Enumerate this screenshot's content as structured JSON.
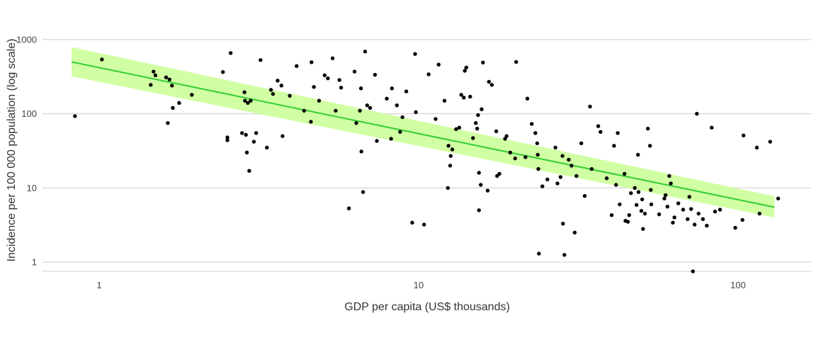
{
  "chart_data": {
    "type": "scatter",
    "xlabel": "GDP per capita (US$ thousands)",
    "ylabel": "Incidence per 100 000 population (log scale)",
    "x_scale": "log",
    "y_scale": "log",
    "xlim": [
      0.75,
      160
    ],
    "ylim": [
      0.7,
      1200
    ],
    "x_ticks": [
      {
        "value": 1,
        "label": "1"
      },
      {
        "value": 10,
        "label": "10"
      },
      {
        "value": 100,
        "label": "100"
      }
    ],
    "y_ticks": [
      {
        "value": 1,
        "label": "1"
      },
      {
        "value": 10,
        "label": "10"
      },
      {
        "value": 100,
        "label": "100"
      },
      {
        "value": 1000,
        "label": "1000"
      }
    ],
    "grid": "horizontal",
    "legend": "none",
    "colors": {
      "points": "#000000",
      "fit_line": "#33cc33",
      "confidence_band": "#ccff99"
    },
    "points": [
      [
        0.84,
        93
      ],
      [
        1.02,
        540
      ],
      [
        1.45,
        245
      ],
      [
        1.48,
        370
      ],
      [
        1.5,
        330
      ],
      [
        1.62,
        310
      ],
      [
        1.64,
        75
      ],
      [
        1.66,
        290
      ],
      [
        1.69,
        240
      ],
      [
        1.7,
        120
      ],
      [
        1.78,
        140
      ],
      [
        1.95,
        180
      ],
      [
        2.44,
        365
      ],
      [
        2.52,
        48
      ],
      [
        2.52,
        44
      ],
      [
        2.58,
        660
      ],
      [
        2.8,
        55
      ],
      [
        2.85,
        195
      ],
      [
        2.86,
        150
      ],
      [
        2.88,
        52
      ],
      [
        2.9,
        30
      ],
      [
        2.92,
        140
      ],
      [
        2.95,
        17
      ],
      [
        2.98,
        150
      ],
      [
        3.05,
        42
      ],
      [
        3.1,
        55
      ],
      [
        3.2,
        530
      ],
      [
        3.35,
        35
      ],
      [
        3.45,
        210
      ],
      [
        3.5,
        185
      ],
      [
        3.62,
        280
      ],
      [
        3.72,
        240
      ],
      [
        3.75,
        50
      ],
      [
        3.95,
        175
      ],
      [
        4.15,
        440
      ],
      [
        4.38,
        110
      ],
      [
        4.6,
        78
      ],
      [
        4.62,
        495
      ],
      [
        4.7,
        230
      ],
      [
        4.88,
        150
      ],
      [
        5.08,
        330
      ],
      [
        5.2,
        300
      ],
      [
        5.38,
        560
      ],
      [
        5.5,
        110
      ],
      [
        5.65,
        285
      ],
      [
        5.72,
        225
      ],
      [
        6.05,
        5.3
      ],
      [
        6.3,
        370
      ],
      [
        6.38,
        75
      ],
      [
        6.55,
        110
      ],
      [
        6.6,
        220
      ],
      [
        6.62,
        31
      ],
      [
        6.7,
        8.8
      ],
      [
        6.8,
        690
      ],
      [
        6.9,
        130
      ],
      [
        7.05,
        120
      ],
      [
        7.3,
        335
      ],
      [
        7.4,
        43
      ],
      [
        7.95,
        160
      ],
      [
        8.2,
        46
      ],
      [
        8.25,
        220
      ],
      [
        8.55,
        130
      ],
      [
        8.75,
        57
      ],
      [
        8.9,
        90
      ],
      [
        9.15,
        200
      ],
      [
        9.55,
        3.4
      ],
      [
        9.75,
        640
      ],
      [
        9.8,
        105
      ],
      [
        10.4,
        3.2
      ],
      [
        10.75,
        340
      ],
      [
        11.3,
        85
      ],
      [
        11.55,
        460
      ],
      [
        12.05,
        150
      ],
      [
        12.35,
        10
      ],
      [
        12.4,
        37
      ],
      [
        12.55,
        20
      ],
      [
        12.6,
        27
      ],
      [
        12.75,
        33
      ],
      [
        13.1,
        62
      ],
      [
        13.4,
        65
      ],
      [
        13.6,
        180
      ],
      [
        13.85,
        165
      ],
      [
        13.95,
        380
      ],
      [
        14.1,
        420
      ],
      [
        14.5,
        170
      ],
      [
        14.8,
        47
      ],
      [
        15.1,
        75
      ],
      [
        15.25,
        63
      ],
      [
        15.35,
        96
      ],
      [
        15.45,
        16
      ],
      [
        15.45,
        5
      ],
      [
        15.65,
        11
      ],
      [
        15.75,
        115
      ],
      [
        15.9,
        490
      ],
      [
        16.45,
        9.2
      ],
      [
        16.6,
        270
      ],
      [
        16.95,
        245
      ],
      [
        17.5,
        58
      ],
      [
        17.6,
        14.5
      ],
      [
        17.9,
        15.5
      ],
      [
        18.65,
        46
      ],
      [
        18.85,
        50
      ],
      [
        19.35,
        30
      ],
      [
        20.05,
        25
      ],
      [
        20.2,
        500
      ],
      [
        21.6,
        26
      ],
      [
        21.9,
        160
      ],
      [
        22.6,
        73
      ],
      [
        23.2,
        55
      ],
      [
        23.5,
        40
      ],
      [
        23.6,
        28
      ],
      [
        23.7,
        18
      ],
      [
        23.8,
        1.3
      ],
      [
        24.4,
        10.5
      ],
      [
        25.3,
        13
      ],
      [
        26.8,
        35
      ],
      [
        27.2,
        11.5
      ],
      [
        27.8,
        14
      ],
      [
        28.2,
        27
      ],
      [
        28.3,
        3.3
      ],
      [
        28.6,
        1.25
      ],
      [
        29.5,
        24
      ],
      [
        30.1,
        20
      ],
      [
        30.8,
        2.5
      ],
      [
        31.2,
        14.5
      ],
      [
        32.3,
        40
      ],
      [
        33.1,
        7.8
      ],
      [
        34.4,
        125
      ],
      [
        34.8,
        18
      ],
      [
        36.5,
        68
      ],
      [
        37.1,
        57
      ],
      [
        38.8,
        13.5
      ],
      [
        40.2,
        4.3
      ],
      [
        40.9,
        37
      ],
      [
        41.5,
        11
      ],
      [
        42,
        55
      ],
      [
        42.6,
        6
      ],
      [
        44.1,
        15.5
      ],
      [
        44.4,
        3.6
      ],
      [
        45.2,
        3.5
      ],
      [
        45.6,
        4.3
      ],
      [
        46.2,
        8.5
      ],
      [
        47.5,
        10
      ],
      [
        48.1,
        5.9
      ],
      [
        48.6,
        28
      ],
      [
        48.8,
        8.8
      ],
      [
        49.8,
        4.9
      ],
      [
        50.1,
        7
      ],
      [
        50.4,
        2.8
      ],
      [
        51.1,
        4.5
      ],
      [
        52.2,
        63
      ],
      [
        53,
        37
      ],
      [
        53.3,
        9.4
      ],
      [
        53.5,
        6
      ],
      [
        56.6,
        4.4
      ],
      [
        58.8,
        7.2
      ],
      [
        59.3,
        8
      ],
      [
        60.1,
        5.6
      ],
      [
        60.9,
        14.5
      ],
      [
        61.6,
        11.5
      ],
      [
        62.5,
        3.4
      ],
      [
        63.2,
        4
      ],
      [
        65,
        6.2
      ],
      [
        67.3,
        5.1
      ],
      [
        69.5,
        3.8
      ],
      [
        70.4,
        7.6
      ],
      [
        71.3,
        5.2
      ],
      [
        72.2,
        0.75
      ],
      [
        73.1,
        3.2
      ],
      [
        74.3,
        100
      ],
      [
        75.2,
        4.5
      ],
      [
        77.6,
        3.8
      ],
      [
        79.8,
        3.1
      ],
      [
        82.7,
        65
      ],
      [
        84.7,
        4.8
      ],
      [
        87.8,
        5.1
      ],
      [
        98,
        2.9
      ],
      [
        103.2,
        3.7
      ],
      [
        104,
        51
      ],
      [
        114.5,
        35
      ],
      [
        116.7,
        4.5
      ],
      [
        126,
        42
      ],
      [
        133.5,
        7.2
      ]
    ],
    "fit_line": [
      [
        0.82,
        500
      ],
      [
        130,
        5.5
      ]
    ],
    "confidence_band": {
      "upper": [
        [
          0.82,
          790
        ],
        [
          130,
          7.7
        ]
      ],
      "lower": [
        [
          0.82,
          320
        ],
        [
          130,
          4.0
        ]
      ]
    }
  }
}
